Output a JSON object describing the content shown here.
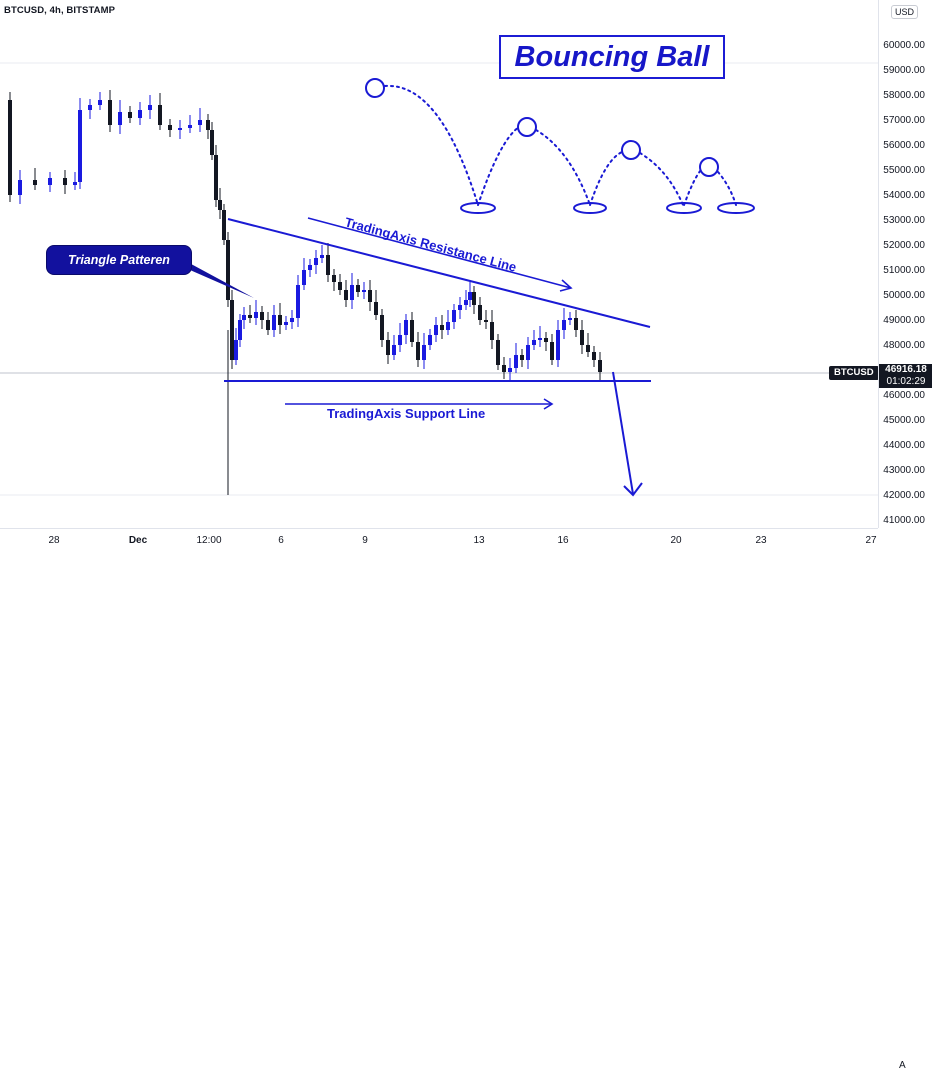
{
  "header": {
    "symbol_line": "BTCUSD, 4h, BITSTAMP"
  },
  "price_axis": {
    "currency": "USD",
    "ticks": [
      "60000.00",
      "59000.00",
      "58000.00",
      "57000.00",
      "56000.00",
      "55000.00",
      "54000.00",
      "53000.00",
      "52000.00",
      "51000.00",
      "50000.00",
      "49000.00",
      "48000.00",
      "47000.00",
      "46000.00",
      "45000.00",
      "44000.00",
      "43000.00",
      "42000.00",
      "41000.00"
    ],
    "last_price": "46916.18",
    "countdown": "01:02:29",
    "symbol_tag": "BTCUSD"
  },
  "time_axis": {
    "ticks": [
      "28",
      "Dec",
      "12:00",
      "6",
      "9",
      "13",
      "16",
      "20",
      "23",
      "27"
    ],
    "auto_label": "A"
  },
  "annotations": {
    "title": "Bouncing Ball",
    "triangle_label": "Triangle Patteren",
    "resistance_label": "TradingAxis Resistance Line",
    "support_label": "TradingAxis Support Line",
    "accent_color": "#1a1ad4",
    "up_color": "#1a1ae0",
    "down_color": "#131722"
  }
}
